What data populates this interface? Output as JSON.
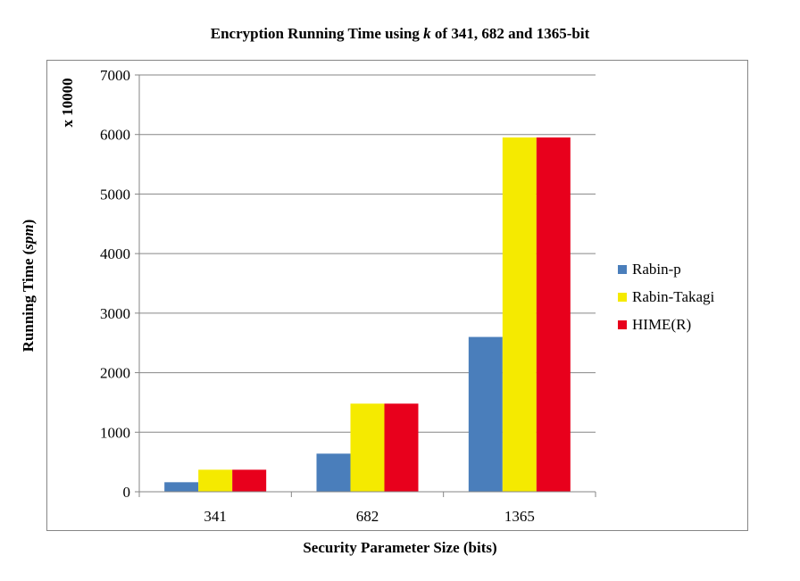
{
  "chart_data": {
    "type": "bar",
    "title_prefix": "Encryption Running Time using ",
    "title_italic": "k",
    "title_suffix": " of 341, 682 and 1365-bit",
    "xlabel": "Security Parameter Size (bits)",
    "ylabel_prefix": "Running Time (",
    "ylabel_italic": "spm",
    "ylabel_suffix": ")",
    "y_multiplier": "x 10000",
    "categories": [
      "341",
      "682",
      "1365"
    ],
    "ylim": [
      0,
      7000
    ],
    "yticks": [
      "0",
      "1000",
      "2000",
      "3000",
      "4000",
      "5000",
      "6000",
      "7000"
    ],
    "grid": true,
    "legend_position": "right",
    "series": [
      {
        "name": "Rabin-p",
        "color": "#4a7ebb",
        "values": [
          160,
          640,
          2600
        ]
      },
      {
        "name": "Rabin-Takagi",
        "color": "#f5ea00",
        "values": [
          370,
          1480,
          5950
        ]
      },
      {
        "name": "HIME(R)",
        "color": "#e8001c",
        "values": [
          370,
          1480,
          5950
        ]
      }
    ]
  }
}
